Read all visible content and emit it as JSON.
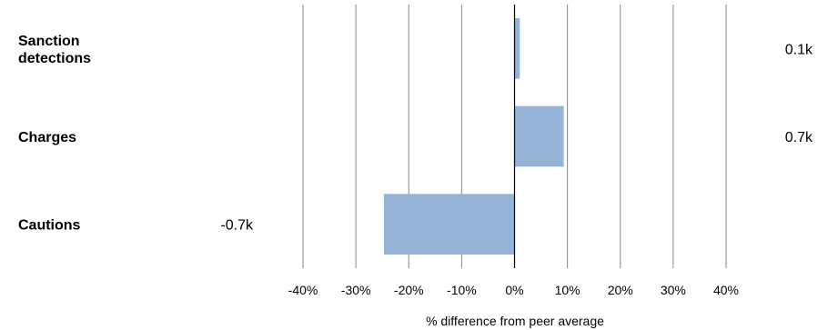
{
  "chart_data": {
    "type": "bar",
    "orientation": "horizontal",
    "categories": [
      "Sanction detections",
      "Charges",
      "Cautions"
    ],
    "category_lines": [
      [
        "Sanction",
        "detections"
      ],
      [
        "Charges"
      ],
      [
        "Cautions"
      ]
    ],
    "values": [
      1,
      9.3,
      -24.7
    ],
    "value_labels": [
      "0.1k",
      "0.7k",
      "-0.7k"
    ],
    "xlabel": "% difference from peer average",
    "xlim": [
      -40,
      40
    ],
    "xticks": [
      -40,
      -30,
      -20,
      -10,
      0,
      10,
      20,
      30,
      40
    ],
    "xtick_labels": [
      "-40%",
      "-30%",
      "-20%",
      "-10%",
      "0%",
      "10%",
      "20%",
      "30%",
      "40%"
    ],
    "grid": true,
    "legend": "none",
    "bar_color": "#95b3d7",
    "grid_color": "#868686",
    "zero_line_color": "#000000"
  }
}
